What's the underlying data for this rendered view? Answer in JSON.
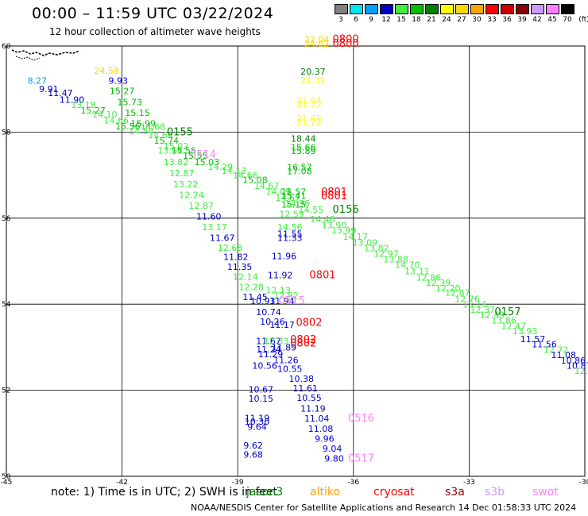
{
  "title": "00:00 – 11:59 UTC 03/22/2024",
  "subtitle": "12 hour collection of altimeter wave heights",
  "legend": {
    "levels": [
      "3",
      "6",
      "9",
      "12",
      "15",
      "18",
      "21",
      "24",
      "27",
      "30",
      "33",
      "36",
      "39",
      "42",
      "45",
      "70"
    ],
    "unit": "(ft)",
    "colors": [
      "#808080",
      "#00e5ee",
      "#00a0ff",
      "#0000cd",
      "#40ee40",
      "#00c000",
      "#008000",
      "#ffff00",
      "#ffd700",
      "#ffa500",
      "#ff0000",
      "#cd0000",
      "#8b0000",
      "#cc99ff",
      "#ff80ff",
      "#000000"
    ]
  },
  "axes": {
    "x_ticks": [
      "-45",
      "-42",
      "-39",
      "-36",
      "-33",
      "-30"
    ],
    "y_ticks": [
      "60",
      "58",
      "56",
      "54",
      "52",
      "50"
    ]
  },
  "labels": [
    {
      "t": "8.27",
      "lon": -44.2,
      "lat": 59.12,
      "c": "#00a0ff"
    },
    {
      "t": "9.91",
      "lon": -43.9,
      "lat": 58.93,
      "c": "#0000cd"
    },
    {
      "t": "11.47",
      "lon": -43.6,
      "lat": 58.84,
      "c": "#0000cd"
    },
    {
      "t": "11.90",
      "lon": -43.3,
      "lat": 58.68,
      "c": "#0000cd"
    },
    {
      "t": "13.18",
      "lon": -43.0,
      "lat": 58.56,
      "c": "#40ee40"
    },
    {
      "t": "15.27",
      "lon": -42.75,
      "lat": 58.43,
      "c": "#00c000"
    },
    {
      "t": "14.10",
      "lon": -42.45,
      "lat": 58.34,
      "c": "#40ee40"
    },
    {
      "t": "14.66",
      "lon": -42.15,
      "lat": 58.2,
      "c": "#40ee40"
    },
    {
      "t": "15.56",
      "lon": -41.85,
      "lat": 58.06,
      "c": "#00c000"
    },
    {
      "t": "14.54",
      "lon": -41.5,
      "lat": 57.95,
      "c": "#40ee40"
    },
    {
      "t": "14.68",
      "lon": -41.2,
      "lat": 58.05,
      "c": "#40ee40"
    },
    {
      "t": "14.64",
      "lon": -41.0,
      "lat": 57.86,
      "c": "#40ee40"
    },
    {
      "t": "15.74",
      "lon": -40.85,
      "lat": 57.73,
      "c": "#00c000"
    },
    {
      "t": "15.02",
      "lon": -40.6,
      "lat": 57.6,
      "c": "#40ee40"
    },
    {
      "t": "13.94",
      "lon": -40.75,
      "lat": 57.5,
      "c": "#40ee40"
    },
    {
      "t": "15.55",
      "lon": -40.4,
      "lat": 57.5,
      "c": "#00c000"
    },
    {
      "t": "15.55",
      "lon": -40.1,
      "lat": 57.38,
      "c": "#00c000"
    },
    {
      "t": "15.03",
      "lon": -39.8,
      "lat": 57.23,
      "c": "#00c000"
    },
    {
      "t": "13.82",
      "lon": -40.6,
      "lat": 57.23,
      "c": "#40ee40"
    },
    {
      "t": "14.29",
      "lon": -39.45,
      "lat": 57.12,
      "c": "#40ee40"
    },
    {
      "t": "12.87",
      "lon": -40.45,
      "lat": 56.97,
      "c": "#40ee40"
    },
    {
      "t": "14.13",
      "lon": -39.1,
      "lat": 57.03,
      "c": "#40ee40"
    },
    {
      "t": "14.66",
      "lon": -38.8,
      "lat": 56.93,
      "c": "#40ee40"
    },
    {
      "t": "13.22",
      "lon": -40.35,
      "lat": 56.72,
      "c": "#40ee40"
    },
    {
      "t": "15.08",
      "lon": -38.55,
      "lat": 56.82,
      "c": "#00c000"
    },
    {
      "t": "14.67",
      "lon": -38.25,
      "lat": 56.68,
      "c": "#40ee40"
    },
    {
      "t": "12.24",
      "lon": -40.2,
      "lat": 56.47,
      "c": "#40ee40"
    },
    {
      "t": "14.09",
      "lon": -37.95,
      "lat": 56.55,
      "c": "#40ee40"
    },
    {
      "t": "14.67",
      "lon": -37.7,
      "lat": 56.4,
      "c": "#40ee40"
    },
    {
      "t": "12.87",
      "lon": -39.95,
      "lat": 56.22,
      "c": "#40ee40"
    },
    {
      "t": "14.96",
      "lon": -37.45,
      "lat": 56.27,
      "c": "#40ee40"
    },
    {
      "t": "14.55",
      "lon": -37.1,
      "lat": 56.13,
      "c": "#40ee40"
    },
    {
      "t": "11.60",
      "lon": -39.75,
      "lat": 55.97,
      "c": "#0000cd"
    },
    {
      "t": "14.46",
      "lon": -36.8,
      "lat": 55.9,
      "c": "#40ee40"
    },
    {
      "t": "13.17",
      "lon": -39.6,
      "lat": 55.72,
      "c": "#40ee40"
    },
    {
      "t": "13.90",
      "lon": -36.5,
      "lat": 55.77,
      "c": "#40ee40"
    },
    {
      "t": "13.99",
      "lon": -36.25,
      "lat": 55.65,
      "c": "#40ee40"
    },
    {
      "t": "14.17",
      "lon": -35.95,
      "lat": 55.5,
      "c": "#40ee40"
    },
    {
      "t": "11.67",
      "lon": -39.4,
      "lat": 55.47,
      "c": "#0000cd"
    },
    {
      "t": "13.09",
      "lon": -35.7,
      "lat": 55.36,
      "c": "#40ee40"
    },
    {
      "t": "12.68",
      "lon": -39.2,
      "lat": 55.24,
      "c": "#40ee40"
    },
    {
      "t": "13.82",
      "lon": -35.4,
      "lat": 55.23,
      "c": "#40ee40"
    },
    {
      "t": "12.97",
      "lon": -35.15,
      "lat": 55.1,
      "c": "#40ee40"
    },
    {
      "t": "11.82",
      "lon": -39.05,
      "lat": 55.03,
      "c": "#0000cd"
    },
    {
      "t": "13.88",
      "lon": -34.9,
      "lat": 54.97,
      "c": "#40ee40"
    },
    {
      "t": "14.70",
      "lon": -34.6,
      "lat": 54.84,
      "c": "#40ee40"
    },
    {
      "t": "11.35",
      "lon": -38.95,
      "lat": 54.8,
      "c": "#0000cd"
    },
    {
      "t": "13.11",
      "lon": -34.35,
      "lat": 54.7,
      "c": "#40ee40"
    },
    {
      "t": "12.14",
      "lon": -38.8,
      "lat": 54.57,
      "c": "#40ee40"
    },
    {
      "t": "12.86",
      "lon": -34.05,
      "lat": 54.55,
      "c": "#40ee40"
    },
    {
      "t": "12.28",
      "lon": -38.65,
      "lat": 54.33,
      "c": "#40ee40"
    },
    {
      "t": "12.39",
      "lon": -33.8,
      "lat": 54.43,
      "c": "#40ee40"
    },
    {
      "t": "12.20",
      "lon": -33.55,
      "lat": 54.3,
      "c": "#40ee40"
    },
    {
      "t": "12.87",
      "lon": -33.3,
      "lat": 54.2,
      "c": "#40ee40"
    },
    {
      "t": "12.76",
      "lon": -33.05,
      "lat": 54.05,
      "c": "#40ee40"
    },
    {
      "t": "13.16",
      "lon": -32.85,
      "lat": 53.92,
      "c": "#40ee40"
    },
    {
      "t": "11.45",
      "lon": -38.55,
      "lat": 54.1,
      "c": "#0000cd"
    },
    {
      "t": "12.92",
      "lon": -37.75,
      "lat": 54.13,
      "c": "#40ee40"
    },
    {
      "t": "10.93",
      "lon": -38.35,
      "lat": 54.0,
      "c": "#0000cd"
    },
    {
      "t": "12.37",
      "lon": -32.65,
      "lat": 53.8,
      "c": "#40ee40"
    },
    {
      "t": "12.49",
      "lon": -32.4,
      "lat": 53.68,
      "c": "#40ee40"
    },
    {
      "t": "10.74",
      "lon": -38.2,
      "lat": 53.75,
      "c": "#0000cd"
    },
    {
      "t": "13.86",
      "lon": -32.1,
      "lat": 53.55,
      "c": "#40ee40"
    },
    {
      "t": "12.47",
      "lon": -31.85,
      "lat": 53.42,
      "c": "#40ee40"
    },
    {
      "t": "10.26",
      "lon": -38.1,
      "lat": 53.52,
      "c": "#0000cd"
    },
    {
      "t": "11.17",
      "lon": -37.85,
      "lat": 53.45,
      "c": "#0000cd"
    },
    {
      "t": "13.93",
      "lon": -31.55,
      "lat": 53.3,
      "c": "#40ee40"
    },
    {
      "t": "11.57",
      "lon": -31.35,
      "lat": 53.12,
      "c": "#0000cd"
    },
    {
      "t": "11.56",
      "lon": -31.05,
      "lat": 53.0,
      "c": "#0000cd"
    },
    {
      "t": "12.72",
      "lon": -30.75,
      "lat": 52.87,
      "c": "#40ee40"
    },
    {
      "t": "11.08",
      "lon": -30.55,
      "lat": 52.75,
      "c": "#0000cd"
    },
    {
      "t": "10.86",
      "lon": -30.3,
      "lat": 52.62,
      "c": "#0000cd"
    },
    {
      "t": "10.87",
      "lon": -30.15,
      "lat": 52.5,
      "c": "#0000cd"
    },
    {
      "t": "12.54",
      "lon": -29.95,
      "lat": 52.38,
      "c": "#40ee40"
    },
    {
      "t": "10",
      "lon": -29.75,
      "lat": 52.22,
      "c": "#0000cd"
    },
    {
      "t": "24.58",
      "lon": -42.4,
      "lat": 59.35,
      "c": "#ffd700"
    },
    {
      "t": "9.93",
      "lon": -42.1,
      "lat": 59.12,
      "c": "#0000cd"
    },
    {
      "t": "15.27",
      "lon": -42.0,
      "lat": 58.88,
      "c": "#00c000"
    },
    {
      "t": "15.73",
      "lon": -41.8,
      "lat": 58.63,
      "c": "#00c000"
    },
    {
      "t": "15.15",
      "lon": -41.6,
      "lat": 58.38,
      "c": "#00c000"
    },
    {
      "t": "15.99",
      "lon": -41.45,
      "lat": 58.13,
      "c": "#00c000"
    },
    {
      "t": "22.04",
      "lon": -36.95,
      "lat": 60.08,
      "c": "#ffd700"
    },
    {
      "t": "24.02",
      "lon": -36.95,
      "lat": 59.98,
      "c": "#ffd700"
    },
    {
      "t": "20.37",
      "lon": -37.05,
      "lat": 59.34,
      "c": "#008000"
    },
    {
      "t": "21.31",
      "lon": -37.05,
      "lat": 59.13,
      "c": "#ffff00"
    },
    {
      "t": "21.64",
      "lon": -37.15,
      "lat": 58.67,
      "c": "#ffff00"
    },
    {
      "t": "21.72",
      "lon": -37.15,
      "lat": 58.57,
      "c": "#ffff00"
    },
    {
      "t": "21.65",
      "lon": -37.15,
      "lat": 58.25,
      "c": "#ffff00"
    },
    {
      "t": "21.72",
      "lon": -37.15,
      "lat": 58.16,
      "c": "#ffff00"
    },
    {
      "t": "18.44",
      "lon": -37.3,
      "lat": 57.78,
      "c": "#008000"
    },
    {
      "t": "15.66",
      "lon": -37.3,
      "lat": 57.57,
      "c": "#00c000"
    },
    {
      "t": "15.89",
      "lon": -37.3,
      "lat": 57.49,
      "c": "#00c000"
    },
    {
      "t": "16.57",
      "lon": -37.4,
      "lat": 57.11,
      "c": "#00c000"
    },
    {
      "t": "17.08",
      "lon": -37.4,
      "lat": 57.02,
      "c": "#00c000"
    },
    {
      "t": "15.57",
      "lon": -37.55,
      "lat": 56.54,
      "c": "#00c000"
    },
    {
      "t": "15.41",
      "lon": -37.55,
      "lat": 56.45,
      "c": "#00c000"
    },
    {
      "t": "15.15",
      "lon": -37.55,
      "lat": 56.25,
      "c": "#00c000"
    },
    {
      "t": "12.59",
      "lon": -37.6,
      "lat": 56.02,
      "c": "#40ee40"
    },
    {
      "t": "14.56",
      "lon": -37.65,
      "lat": 55.72,
      "c": "#40ee40"
    },
    {
      "t": "11.55",
      "lon": -37.65,
      "lat": 55.56,
      "c": "#0000cd"
    },
    {
      "t": "11.33",
      "lon": -37.65,
      "lat": 55.47,
      "c": "#0000cd"
    },
    {
      "t": "11.96",
      "lon": -37.8,
      "lat": 55.05,
      "c": "#0000cd"
    },
    {
      "t": "11.92",
      "lon": -37.9,
      "lat": 54.6,
      "c": "#0000cd"
    },
    {
      "t": "12.13",
      "lon": -37.95,
      "lat": 54.25,
      "c": "#40ee40"
    },
    {
      "t": "11.94",
      "lon": -37.85,
      "lat": 54.0,
      "c": "#0000cd"
    },
    {
      "t": "11.67",
      "lon": -38.2,
      "lat": 53.07,
      "c": "#0000cd"
    },
    {
      "t": "12.33",
      "lon": -38.0,
      "lat": 53.07,
      "c": "#40ee40"
    },
    {
      "t": "11.24",
      "lon": -38.2,
      "lat": 52.88,
      "c": "#0000cd"
    },
    {
      "t": "11.89",
      "lon": -37.8,
      "lat": 52.92,
      "c": "#0000cd"
    },
    {
      "t": "11.29",
      "lon": -38.15,
      "lat": 52.77,
      "c": "#0000cd"
    },
    {
      "t": "11.26",
      "lon": -37.75,
      "lat": 52.63,
      "c": "#0000cd"
    },
    {
      "t": "10.56",
      "lon": -38.3,
      "lat": 52.5,
      "c": "#0000cd"
    },
    {
      "t": "10.55",
      "lon": -37.65,
      "lat": 52.43,
      "c": "#0000cd"
    },
    {
      "t": "10.38",
      "lon": -37.35,
      "lat": 52.2,
      "c": "#0000cd"
    },
    {
      "t": "10.67",
      "lon": -38.4,
      "lat": 51.95,
      "c": "#0000cd"
    },
    {
      "t": "11.61",
      "lon": -37.25,
      "lat": 51.97,
      "c": "#0000cd"
    },
    {
      "t": "10.15",
      "lon": -38.4,
      "lat": 51.73,
      "c": "#0000cd"
    },
    {
      "t": "10.55",
      "lon": -37.15,
      "lat": 51.75,
      "c": "#0000cd"
    },
    {
      "t": "11.19",
      "lon": -37.05,
      "lat": 51.5,
      "c": "#0000cd"
    },
    {
      "t": "11.04",
      "lon": -36.95,
      "lat": 51.27,
      "c": "#0000cd"
    },
    {
      "t": "11.08",
      "lon": -36.85,
      "lat": 51.03,
      "c": "#0000cd"
    },
    {
      "t": "9.96",
      "lon": -36.75,
      "lat": 50.8,
      "c": "#0000cd"
    },
    {
      "t": "9.04",
      "lon": -36.55,
      "lat": 50.57,
      "c": "#0000cd"
    },
    {
      "t": "9.80",
      "lon": -36.5,
      "lat": 50.34,
      "c": "#0000cd"
    },
    {
      "t": "11.19",
      "lon": -38.5,
      "lat": 51.28,
      "c": "#0000cd"
    },
    {
      "t": "10.30",
      "lon": -38.5,
      "lat": 51.2,
      "c": "#0000cd"
    },
    {
      "t": "9.64",
      "lon": -38.5,
      "lat": 51.08,
      "c": "#0000cd"
    },
    {
      "t": "9.62",
      "lon": -38.6,
      "lat": 50.65,
      "c": "#0000cd"
    },
    {
      "t": "9.68",
      "lon": -38.6,
      "lat": 50.43,
      "c": "#0000cd"
    }
  ],
  "passes": [
    {
      "t": "0155",
      "lon": -40.5,
      "lat": 57.92,
      "c": "#008000"
    },
    {
      "t": "0514",
      "lon": -39.9,
      "lat": 57.4,
      "c": "#ff80ff"
    },
    {
      "t": "0800",
      "lon": -36.2,
      "lat": 60.08,
      "c": "#ff0000"
    },
    {
      "t": "0800",
      "lon": -36.2,
      "lat": 59.98,
      "c": "#ff0000"
    },
    {
      "t": "0801",
      "lon": -36.5,
      "lat": 56.53,
      "c": "#ff0000"
    },
    {
      "t": "0801",
      "lon": -36.5,
      "lat": 56.44,
      "c": "#ff0000"
    },
    {
      "t": "0156",
      "lon": -36.2,
      "lat": 56.13,
      "c": "#008000"
    },
    {
      "t": "0801",
      "lon": -36.8,
      "lat": 54.6,
      "c": "#ff0000"
    },
    {
      "t": "0515",
      "lon": -37.6,
      "lat": 54.0,
      "c": "#ff80ff"
    },
    {
      "t": "0157",
      "lon": -32.0,
      "lat": 53.75,
      "c": "#008000"
    },
    {
      "t": "0802",
      "lon": -37.15,
      "lat": 53.5,
      "c": "#ff0000"
    },
    {
      "t": "0802",
      "lon": -37.3,
      "lat": 53.1,
      "c": "#ff0000"
    },
    {
      "t": "0802",
      "lon": -37.3,
      "lat": 53.02,
      "c": "#ff0000"
    },
    {
      "t": "0516",
      "lon": -35.8,
      "lat": 51.27,
      "c": "#ff80ff"
    },
    {
      "t": "0517",
      "lon": -35.8,
      "lat": 50.34,
      "c": "#ff80ff"
    }
  ],
  "footer": {
    "note": "note: 1) Time is in UTC; 2) SWH is in feet",
    "satellites": [
      {
        "name": "jason3",
        "c": "#008000"
      },
      {
        "name": "altiko",
        "c": "#ffa500"
      },
      {
        "name": "cryosat",
        "c": "#ff0000"
      },
      {
        "name": "s3a",
        "c": "#8b0000"
      },
      {
        "name": "s3b",
        "c": "#cc99ff"
      },
      {
        "name": "swot",
        "c": "#ff80ff"
      }
    ],
    "credit": "NOAA/NESDIS Center for Satellite Applications and Research   14 Dec 01:58:33 UTC 2024"
  }
}
